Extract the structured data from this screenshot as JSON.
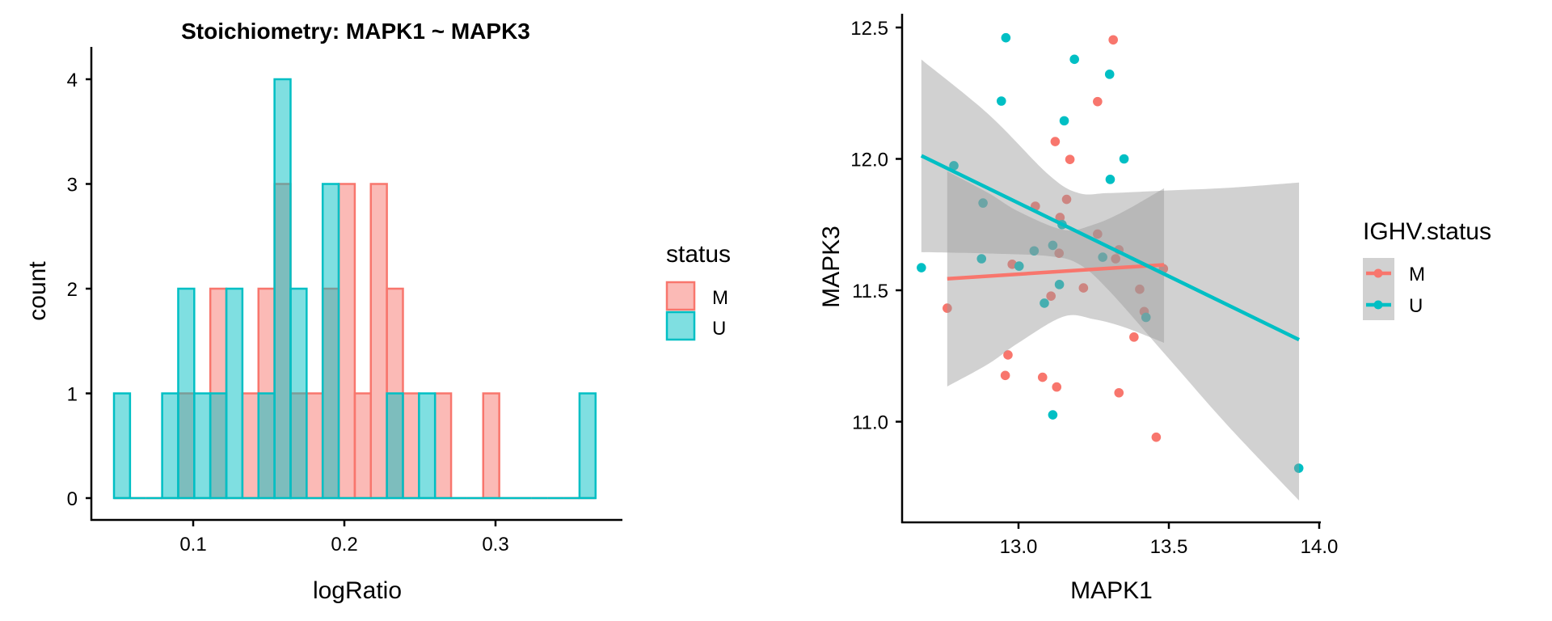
{
  "colors": {
    "M": "#F8766D",
    "U": "#00BFC4",
    "band": "#999999",
    "axis": "#000000"
  },
  "chart_data": [
    {
      "type": "bar",
      "subtype": "histogram",
      "title": "Stoichiometry: MAPK1 ~ MAPK3",
      "xlabel": "logRatio",
      "ylabel": "count",
      "xlim": [
        0.035,
        0.389
      ],
      "ylim": [
        -0.2,
        4.2
      ],
      "xticks": [
        0.1,
        0.2,
        0.3
      ],
      "xtick_labels": [
        "0.1",
        "0.2",
        "0.3"
      ],
      "yticks": [
        0,
        1,
        2,
        3,
        4
      ],
      "ytick_labels": [
        "0",
        "1",
        "2",
        "3",
        "4"
      ],
      "grid": false,
      "bins": 30,
      "bin_start": 0.0476,
      "bin_width": 0.01062,
      "position": "identity",
      "alpha": 0.5,
      "legend": {
        "title": "status",
        "placement": "right",
        "entries": [
          "M",
          "U"
        ]
      },
      "series": [
        {
          "name": "M",
          "values": [
            0,
            0,
            0,
            0,
            1,
            0,
            2,
            0,
            1,
            2,
            3,
            1,
            1,
            2,
            3,
            1,
            3,
            2,
            1,
            0,
            1,
            0,
            0,
            1,
            0,
            0,
            0,
            0,
            0,
            0
          ]
        },
        {
          "name": "U",
          "values": [
            1,
            0,
            0,
            1,
            2,
            1,
            1,
            2,
            0,
            1,
            4,
            2,
            0,
            3,
            0,
            0,
            0,
            1,
            0,
            1,
            0,
            0,
            0,
            0,
            0,
            0,
            0,
            0,
            0,
            1
          ]
        }
      ]
    },
    {
      "type": "scatter",
      "title": "",
      "xlabel": "MAPK1",
      "ylabel": "MAPK3",
      "xlim": [
        12.613,
        14.005
      ],
      "ylim": [
        10.62,
        12.55
      ],
      "xticks": [
        13.0,
        13.5,
        14.0
      ],
      "xtick_labels": [
        "13.0",
        "13.5",
        "14.0"
      ],
      "yticks": [
        11.0,
        11.5,
        12.0,
        12.5
      ],
      "ytick_labels": [
        "11.0",
        "11.5",
        "12.0",
        "12.5"
      ],
      "grid": false,
      "legend": {
        "title": "IGHV.status",
        "placement": "right",
        "entries": [
          "M",
          "U"
        ]
      },
      "series": [
        {
          "name": "M",
          "points": [
            [
              13.315,
              12.453
            ],
            [
              13.263,
              12.218
            ],
            [
              13.122,
              12.066
            ],
            [
              13.171,
              11.998
            ],
            [
              13.16,
              11.846
            ],
            [
              13.056,
              11.82
            ],
            [
              13.138,
              11.777
            ],
            [
              13.263,
              11.714
            ],
            [
              13.135,
              11.641
            ],
            [
              13.334,
              11.654
            ],
            [
              13.323,
              11.62
            ],
            [
              12.979,
              11.599
            ],
            [
              13.482,
              11.582
            ],
            [
              13.216,
              11.509
            ],
            [
              13.403,
              11.504
            ],
            [
              13.108,
              11.478
            ],
            [
              12.763,
              11.432
            ],
            [
              13.418,
              11.419
            ],
            [
              13.384,
              11.322
            ],
            [
              12.965,
              11.254
            ],
            [
              12.956,
              11.176
            ],
            [
              13.08,
              11.169
            ],
            [
              13.127,
              11.132
            ],
            [
              13.334,
              11.11
            ],
            [
              13.458,
              10.941
            ]
          ],
          "fit_line": [
            [
              12.763,
              11.544
            ],
            [
              13.484,
              11.597
            ]
          ],
          "ci_band": [
            [
              12.763,
              11.134,
              11.953
            ],
            [
              12.9,
              11.22,
              11.87
            ],
            [
              13.0,
              11.3,
              11.8
            ],
            [
              13.15,
              11.4,
              11.73
            ],
            [
              13.25,
              11.39,
              11.75
            ],
            [
              13.35,
              11.36,
              11.8
            ],
            [
              13.484,
              11.3,
              11.888
            ]
          ]
        },
        {
          "name": "U",
          "points": [
            [
              12.958,
              12.461
            ],
            [
              13.186,
              12.379
            ],
            [
              13.303,
              12.322
            ],
            [
              12.943,
              12.22
            ],
            [
              13.152,
              12.145
            ],
            [
              13.351,
              12.0
            ],
            [
              12.785,
              11.974
            ],
            [
              13.305,
              11.922
            ],
            [
              12.882,
              11.832
            ],
            [
              13.145,
              11.75
            ],
            [
              13.114,
              11.671
            ],
            [
              13.052,
              11.65
            ],
            [
              13.28,
              11.626
            ],
            [
              12.877,
              11.62
            ],
            [
              12.677,
              11.586
            ],
            [
              13.002,
              11.592
            ],
            [
              13.136,
              11.522
            ],
            [
              13.086,
              11.451
            ],
            [
              13.424,
              11.397
            ],
            [
              13.114,
              11.026
            ],
            [
              13.932,
              10.823
            ]
          ],
          "fit_line": [
            [
              12.677,
              12.012
            ],
            [
              13.933,
              11.312
            ]
          ],
          "ci_band": [
            [
              12.677,
              11.645,
              12.378
            ],
            [
              12.9,
              11.64,
              12.17
            ],
            [
              13.1,
              11.63,
              11.94
            ],
            [
              13.2,
              11.6,
              11.87
            ],
            [
              13.3,
              11.5,
              11.87
            ],
            [
              13.5,
              11.24,
              11.88
            ],
            [
              13.7,
              10.98,
              11.89
            ],
            [
              13.933,
              10.7,
              11.91
            ]
          ]
        }
      ]
    }
  ]
}
